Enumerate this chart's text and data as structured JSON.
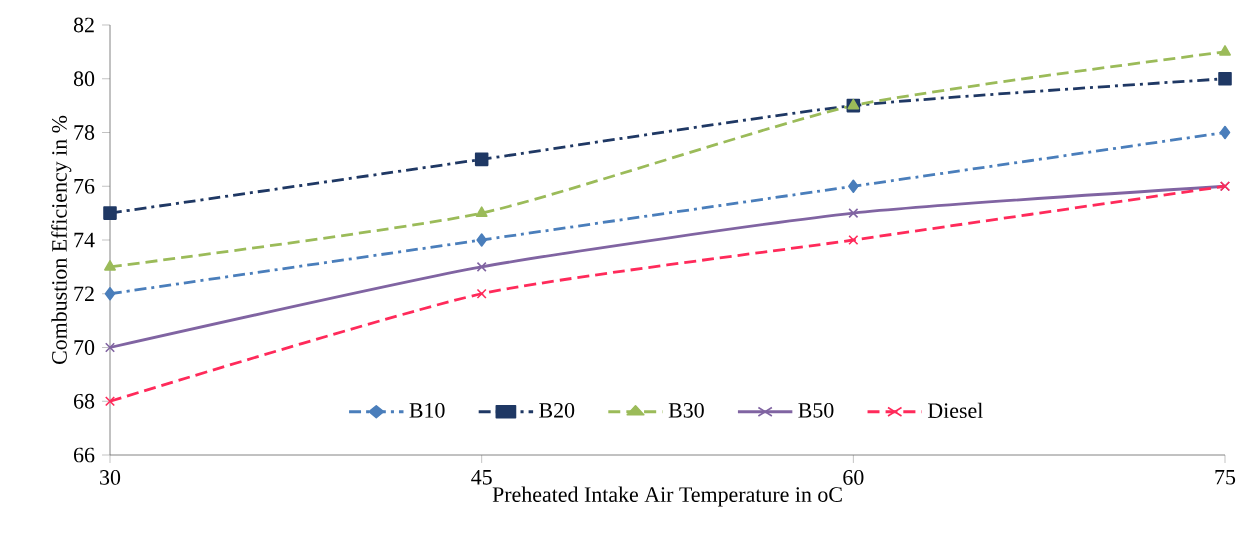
{
  "chart_data": {
    "type": "line",
    "xlabel": "Preheated Intake Air Temperature in oC",
    "ylabel": "Combustion Efficiency in %",
    "x": [
      30,
      45,
      60,
      75
    ],
    "series": [
      {
        "name": "B10",
        "color": "#4a7ebb",
        "values": [
          72,
          74,
          76,
          78
        ],
        "marker": "diamond",
        "line_style": "dashdot"
      },
      {
        "name": "B20",
        "color": "#1f3864",
        "values": [
          75,
          77,
          79,
          80
        ],
        "marker": "square",
        "line_style": "dashdot"
      },
      {
        "name": "B30",
        "color": "#9bbb59",
        "values": [
          73,
          75,
          79,
          81
        ],
        "marker": "triangle",
        "line_style": "dashed"
      },
      {
        "name": "B50",
        "color": "#8064a2",
        "values": [
          70,
          73,
          75,
          76
        ],
        "marker": "cross",
        "line_style": "solid"
      },
      {
        "name": "Diesel",
        "color": "#ff2a5a",
        "values": [
          68,
          72,
          74,
          76
        ],
        "marker": "cross",
        "line_style": "dashed"
      }
    ],
    "xlim": [
      30,
      75
    ],
    "xticks": [
      30,
      45,
      60,
      75
    ],
    "ylim": [
      66,
      82
    ],
    "yticks": [
      66,
      68,
      70,
      72,
      74,
      76,
      78,
      80,
      82
    ],
    "grid": false,
    "legend": "bottom"
  }
}
